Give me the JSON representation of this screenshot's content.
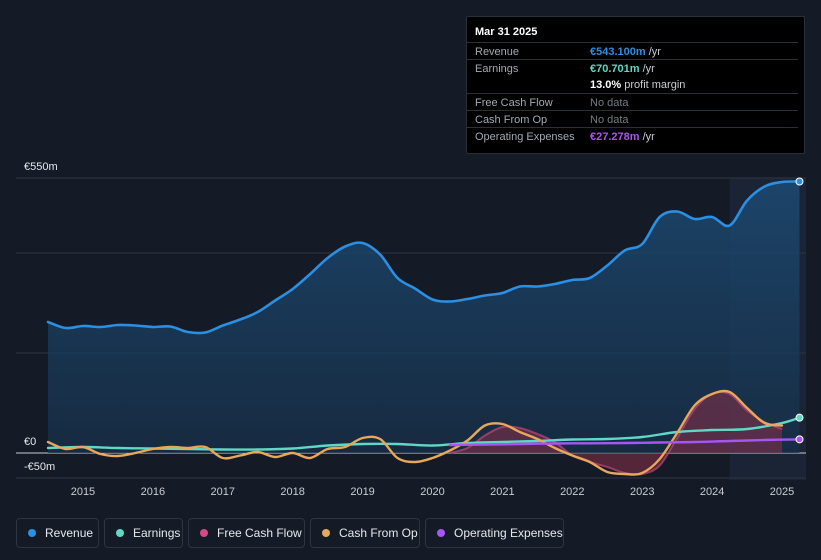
{
  "tooltip": {
    "date": "Mar 31 2025",
    "rows": [
      {
        "label": "Revenue",
        "value": "€543.100m",
        "unit": "/yr",
        "color": "#2b8fe3"
      },
      {
        "label": "Earnings",
        "value": "€70.701m",
        "unit": "/yr",
        "color": "#5fd8c5"
      },
      {
        "label": "",
        "value": "13.0%",
        "unit": "profit margin",
        "color": "#ffffff"
      },
      {
        "label": "Free Cash Flow",
        "value": "No data",
        "unit": "",
        "color": "#777b83"
      },
      {
        "label": "Cash From Op",
        "value": "No data",
        "unit": "",
        "color": "#777b83"
      },
      {
        "label": "Operating Expenses",
        "value": "€27.278m",
        "unit": "/yr",
        "color": "#a855f7"
      }
    ]
  },
  "chart_data": {
    "type": "line",
    "title": "",
    "xlabel": "",
    "ylabel": "",
    "currency_unit": "€m",
    "ylim": [
      -50,
      550
    ],
    "y_tick_labels": [
      "€550m",
      "€0",
      "-€50m"
    ],
    "x_tick_labels": [
      "2015",
      "2016",
      "2017",
      "2018",
      "2019",
      "2020",
      "2021",
      "2022",
      "2023",
      "2024",
      "2025"
    ],
    "x_tick_values": [
      2015,
      2016,
      2017,
      2018,
      2019,
      2020,
      2021,
      2022,
      2023,
      2024,
      2025
    ],
    "xlim": [
      2014.5,
      2025.3
    ],
    "forecast_shade_from": 2024.25,
    "series": [
      {
        "name": "Revenue",
        "color": "#2b8fe3",
        "fill": true,
        "x": [
          2014.5,
          2014.75,
          2015.0,
          2015.25,
          2015.5,
          2015.75,
          2016.0,
          2016.25,
          2016.5,
          2016.75,
          2017.0,
          2017.25,
          2017.5,
          2017.75,
          2018.0,
          2018.25,
          2018.5,
          2018.75,
          2019.0,
          2019.25,
          2019.5,
          2019.75,
          2020.0,
          2020.25,
          2020.5,
          2020.75,
          2021.0,
          2021.25,
          2021.5,
          2021.75,
          2022.0,
          2022.25,
          2022.5,
          2022.75,
          2023.0,
          2023.25,
          2023.5,
          2023.75,
          2024.0,
          2024.25,
          2024.5,
          2024.75,
          2025.0,
          2025.25
        ],
        "values": [
          262,
          250,
          254,
          252,
          256,
          255,
          252,
          253,
          242,
          241,
          255,
          267,
          282,
          305,
          328,
          358,
          390,
          413,
          420,
          397,
          350,
          329,
          307,
          303,
          308,
          315,
          320,
          333,
          333,
          338,
          346,
          350,
          375,
          405,
          418,
          472,
          483,
          468,
          472,
          455,
          505,
          533,
          542,
          543
        ]
      },
      {
        "name": "Earnings",
        "color": "#5fd8c5",
        "fill": false,
        "x": [
          2014.5,
          2015.0,
          2015.5,
          2016.0,
          2016.5,
          2017.0,
          2017.5,
          2018.0,
          2018.5,
          2019.0,
          2019.5,
          2020.0,
          2020.5,
          2021.0,
          2021.5,
          2022.0,
          2022.5,
          2023.0,
          2023.5,
          2024.0,
          2024.5,
          2025.0,
          2025.25
        ],
        "values": [
          10,
          12,
          10,
          9,
          8,
          7,
          7,
          9,
          15,
          18,
          18,
          15,
          20,
          22,
          24,
          27,
          28,
          32,
          42,
          46,
          48,
          60,
          70.7
        ]
      },
      {
        "name": "Free Cash Flow",
        "color": "#d64b87",
        "fill": true,
        "x": [
          2020.25,
          2020.5,
          2020.75,
          2021.0,
          2021.25,
          2021.5,
          2021.75,
          2022.0,
          2022.25,
          2022.5,
          2022.75,
          2023.0,
          2023.25,
          2023.5,
          2023.75,
          2024.0,
          2024.25,
          2024.5,
          2024.75,
          2025.0
        ],
        "values": [
          0,
          10,
          35,
          52,
          50,
          38,
          22,
          -5,
          -18,
          -28,
          -40,
          -42,
          -25,
          30,
          88,
          118,
          118,
          85,
          62,
          48
        ]
      },
      {
        "name": "Cash From Op",
        "color": "#e8a85a",
        "fill": false,
        "x": [
          2014.5,
          2014.75,
          2015.0,
          2015.25,
          2015.5,
          2015.75,
          2016.0,
          2016.25,
          2016.5,
          2016.75,
          2017.0,
          2017.25,
          2017.5,
          2017.75,
          2018.0,
          2018.25,
          2018.5,
          2018.75,
          2019.0,
          2019.25,
          2019.5,
          2019.75,
          2020.0,
          2020.25,
          2020.5,
          2020.75,
          2021.0,
          2021.25,
          2021.5,
          2021.75,
          2022.0,
          2022.25,
          2022.5,
          2022.75,
          2023.0,
          2023.25,
          2023.5,
          2023.75,
          2024.0,
          2024.25,
          2024.5,
          2024.75,
          2025.0
        ],
        "values": [
          22,
          8,
          12,
          -2,
          -6,
          0,
          8,
          12,
          10,
          12,
          -10,
          -5,
          2,
          -8,
          0,
          -10,
          8,
          12,
          30,
          28,
          -10,
          -18,
          -10,
          5,
          25,
          55,
          58,
          42,
          28,
          10,
          -5,
          -18,
          -38,
          -42,
          -40,
          -12,
          40,
          95,
          118,
          122,
          90,
          60,
          55
        ]
      },
      {
        "name": "Operating Expenses",
        "color": "#a855f7",
        "fill": false,
        "x": [
          2020.25,
          2020.75,
          2021.25,
          2021.75,
          2022.25,
          2022.75,
          2023.25,
          2023.75,
          2024.25,
          2024.75,
          2025.25
        ],
        "values": [
          16,
          17,
          18,
          19,
          19.5,
          20,
          21,
          22,
          24,
          26,
          27.3
        ]
      }
    ]
  },
  "legend": [
    {
      "label": "Revenue",
      "color": "#2b8fe3"
    },
    {
      "label": "Earnings",
      "color": "#5fd8c5"
    },
    {
      "label": "Free Cash Flow",
      "color": "#d64b87"
    },
    {
      "label": "Cash From Op",
      "color": "#e8a85a"
    },
    {
      "label": "Operating Expenses",
      "color": "#a855f7"
    }
  ]
}
